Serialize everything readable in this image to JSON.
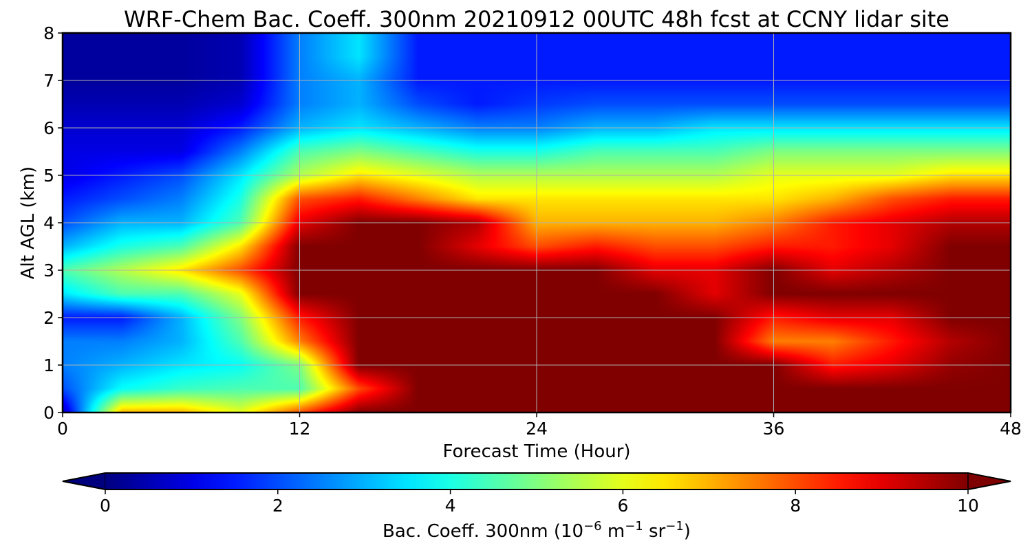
{
  "chart_data": {
    "type": "heatmap",
    "title": "WRF-Chem Bac. Coeff. 300nm  20210912 00UTC 48h fcst at CCNY lidar site",
    "xlabel": "Forecast Time (Hour)",
    "ylabel": "Alt AGL (km)",
    "xlim": [
      0,
      48
    ],
    "ylim": [
      0,
      8
    ],
    "xticks": [
      0,
      12,
      24,
      36,
      48
    ],
    "xtick_labels": [
      "0",
      "12",
      "24",
      "36",
      "48"
    ],
    "yticks": [
      0,
      1,
      2,
      3,
      4,
      5,
      6,
      7,
      8
    ],
    "ytick_labels": [
      "0",
      "1",
      "2",
      "3",
      "4",
      "5",
      "6",
      "7",
      "8"
    ],
    "grid": true,
    "colormap": "jet",
    "colorbar": {
      "label_main": "Bac. Coeff. 300nm  (10",
      "label_exp1": "−6",
      "label_mid": " m",
      "label_exp2": "−1",
      "label_mid2": " sr",
      "label_exp3": "−1",
      "label_end": ")",
      "range": [
        0,
        10
      ],
      "ticks": [
        0,
        2,
        4,
        6,
        8,
        10
      ],
      "tick_labels": [
        "0",
        "2",
        "4",
        "6",
        "8",
        "10"
      ],
      "extend": "both",
      "orientation": "horizontal",
      "placement": "bottom"
    },
    "x_hours": [
      0,
      3,
      6,
      9,
      12,
      15,
      18,
      21,
      24,
      27,
      30,
      33,
      36,
      39,
      42,
      45,
      48
    ],
    "y_km": [
      0,
      0.5,
      1,
      1.5,
      2,
      2.5,
      3,
      3.5,
      4,
      4.5,
      5,
      5.5,
      6,
      6.5,
      7,
      7.5,
      8
    ],
    "values": [
      [
        0.5,
        7,
        7,
        6,
        8,
        10,
        10,
        10,
        10,
        10,
        10,
        10,
        10,
        10,
        10,
        10,
        10
      ],
      [
        2,
        3.8,
        4.3,
        4.5,
        4.5,
        8,
        10,
        10,
        10,
        10,
        10,
        10,
        10,
        10,
        10,
        10,
        10
      ],
      [
        2.5,
        3,
        3.5,
        3.8,
        5,
        10,
        10,
        10,
        10,
        10,
        10,
        10,
        10,
        8.5,
        9,
        9.8,
        10
      ],
      [
        2.5,
        2.5,
        3,
        4.5,
        7.5,
        10,
        10,
        10,
        10,
        10,
        10,
        10,
        7.5,
        7.5,
        8.5,
        9.5,
        10
      ],
      [
        1.5,
        1.5,
        3,
        5,
        8.5,
        10,
        10,
        10,
        10,
        10,
        10,
        10,
        8.5,
        9,
        9,
        10,
        10
      ],
      [
        3.5,
        4.5,
        4.5,
        6,
        10,
        10,
        10,
        10,
        10,
        10,
        10,
        9,
        10,
        10,
        10,
        10,
        10
      ],
      [
        4.5,
        5.5,
        6.5,
        8,
        10,
        10,
        10,
        10,
        10,
        10,
        9,
        9,
        10,
        9,
        9.5,
        10,
        10
      ],
      [
        3,
        4,
        4.5,
        6.5,
        10,
        10,
        10,
        9,
        8,
        8.5,
        8,
        8,
        8.5,
        8.5,
        9,
        10,
        10
      ],
      [
        2,
        3,
        3,
        4.5,
        9,
        10,
        10,
        9.5,
        7,
        7,
        7,
        7,
        7.5,
        8.5,
        9,
        9.5,
        9.5
      ],
      [
        1.5,
        2,
        2.5,
        4,
        8,
        8.5,
        7.5,
        6.5,
        6.5,
        6.5,
        6.5,
        6.5,
        6.5,
        7,
        8,
        8.5,
        8.5
      ],
      [
        1,
        1.5,
        2,
        3.5,
        5.5,
        6.5,
        6,
        5.5,
        5.5,
        5.5,
        5.5,
        5.5,
        6,
        6,
        6,
        6.5,
        6.5
      ],
      [
        1,
        1,
        1,
        2.5,
        4.5,
        5,
        4.5,
        4,
        4,
        4.5,
        4.5,
        4.5,
        5,
        5,
        5,
        5,
        5
      ],
      [
        0.8,
        0.8,
        0.8,
        1.5,
        3,
        3.5,
        3,
        2.5,
        2.5,
        3,
        3,
        3.5,
        3.5,
        3.5,
        3.5,
        3.5,
        3.5
      ],
      [
        0.5,
        0.5,
        0.5,
        0.8,
        2.5,
        3,
        2,
        1.5,
        1.8,
        2,
        2,
        2,
        2,
        2,
        2,
        2,
        2
      ],
      [
        0.3,
        0.3,
        0.3,
        0.5,
        2.5,
        3,
        1.5,
        1.5,
        1.5,
        1.5,
        1.5,
        1.5,
        1.5,
        1.5,
        1.5,
        1.5,
        1.5
      ],
      [
        0.3,
        0.3,
        0.3,
        0.5,
        2.5,
        3.5,
        1.5,
        1.5,
        1.5,
        1.5,
        1.5,
        1.5,
        1.5,
        1.5,
        1.5,
        1.5,
        1.5
      ],
      [
        0.3,
        0.3,
        0.3,
        0.5,
        2.5,
        3.5,
        1.5,
        1.5,
        1.5,
        1.5,
        1.5,
        1.5,
        1.5,
        1.5,
        1.5,
        1.5,
        1.5
      ]
    ]
  }
}
